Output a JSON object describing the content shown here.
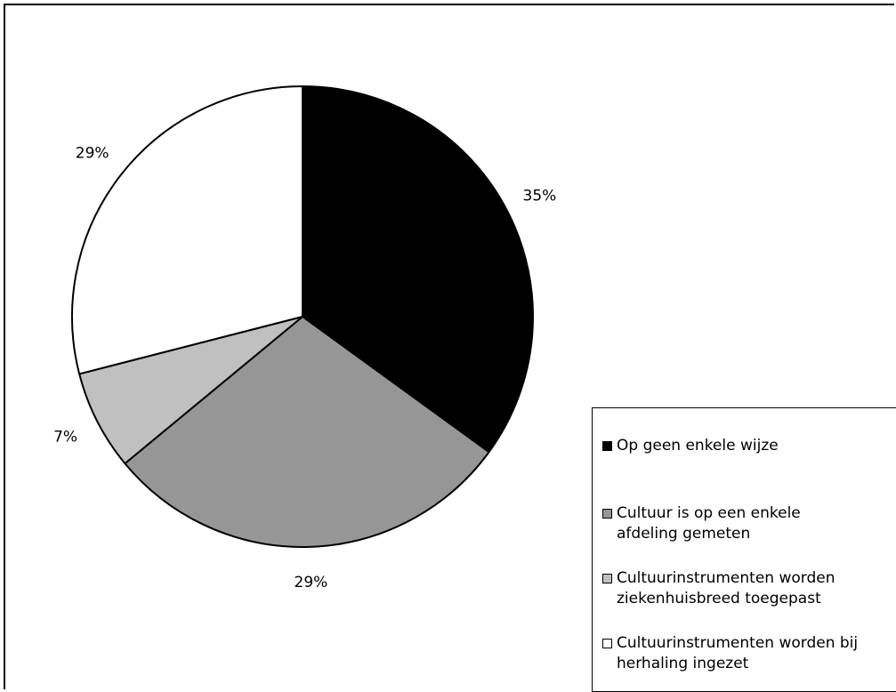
{
  "chart_data": {
    "type": "pie",
    "title": "",
    "slices": [
      {
        "label": "Op geen enkele wijze",
        "value": 35,
        "value_label": "35%",
        "color": "#000000"
      },
      {
        "label": "Cultuur is op een enkele afdeling gemeten",
        "value": 29,
        "value_label": "29%",
        "color": "#969696"
      },
      {
        "label": "Cultuurinstrumenten worden ziekenhuisbreed toegepast",
        "value": 7,
        "value_label": "7%",
        "color": "#c0c0c0"
      },
      {
        "label": "Cultuurinstrumenten worden bij herhaling ingezet",
        "value": 29,
        "value_label": "29%",
        "color": "#ffffff"
      }
    ],
    "legend_position": "bottom-right"
  },
  "legend": {
    "items": [
      {
        "text": "Op geen enkele wijze",
        "color": "#000000"
      },
      {
        "text": "Cultuur is op een enkele\nafdeling gemeten",
        "color": "#969696"
      },
      {
        "text": "Cultuurinstrumenten worden\nziekenhuisbreed toegepast",
        "color": "#c0c0c0"
      },
      {
        "text": "Cultuurinstrumenten worden bij\nherhaling ingezet",
        "color": "#ffffff"
      }
    ]
  }
}
